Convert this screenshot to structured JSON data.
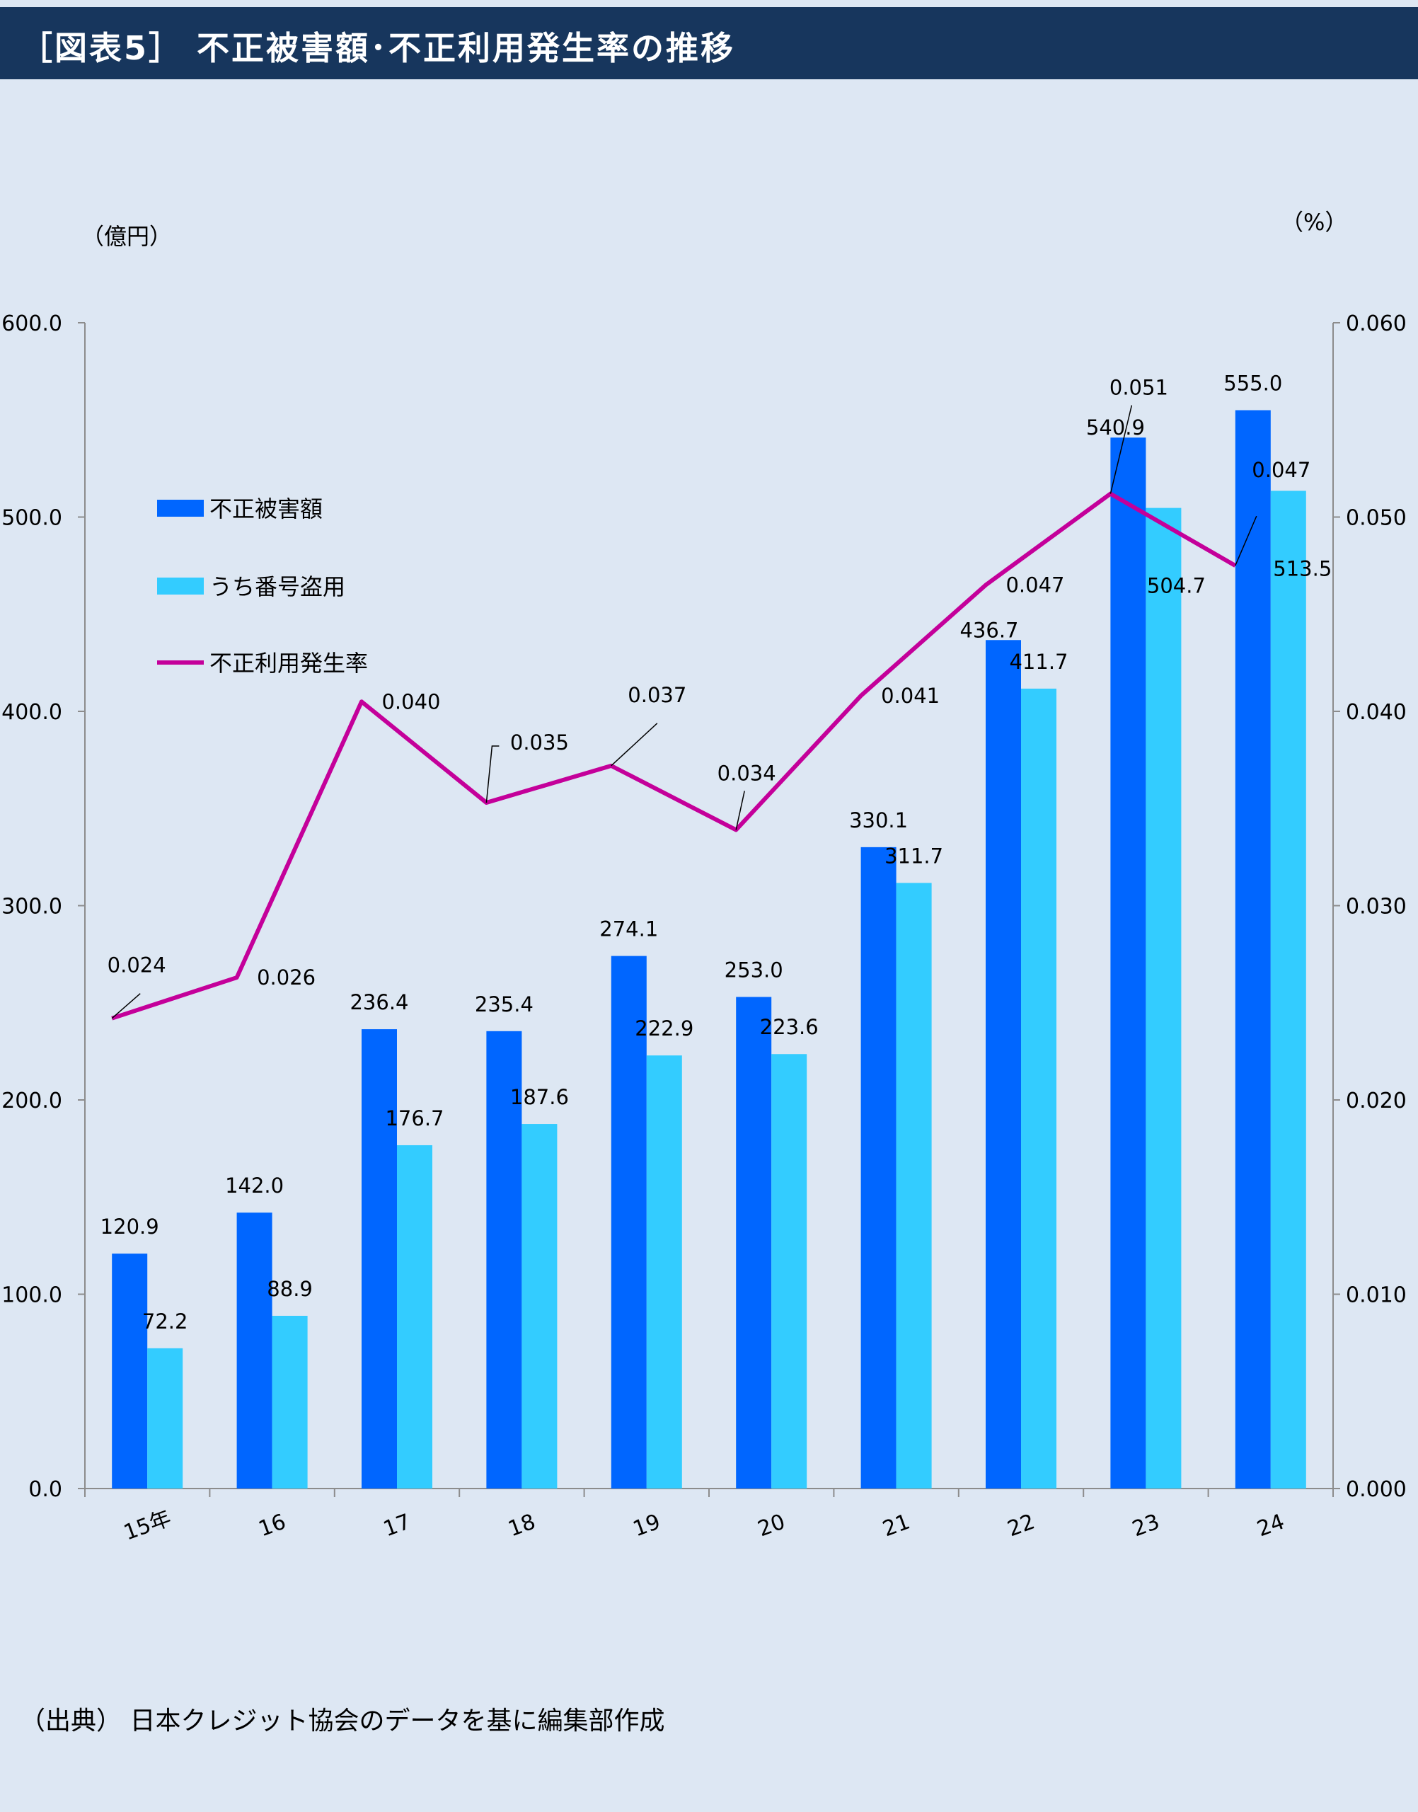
{
  "header": {
    "title": "［図表5］ 不正被害額･不正利用発生率の推移"
  },
  "source_note": "（出典） 日本クレジット協会のデータを基に編集部作成",
  "chart_data": {
    "type": "bar",
    "title": "［図表5］ 不正被害額･不正利用発生率の推移",
    "left_unit": "（億円）",
    "right_unit": "（%）",
    "categories": [
      "15年",
      "16",
      "17",
      "18",
      "19",
      "20",
      "21",
      "22",
      "23",
      "24"
    ],
    "ylim": [
      0,
      600
    ],
    "y2lim": [
      0,
      0.06
    ],
    "y_ticks": [
      "0.0",
      "100.0",
      "200.0",
      "300.0",
      "400.0",
      "500.0",
      "600.0"
    ],
    "y2_ticks": [
      "0.000",
      "0.010",
      "0.020",
      "0.030",
      "0.040",
      "0.050",
      "0.060"
    ],
    "grid": false,
    "legend_position": "upper-left",
    "series": [
      {
        "name": "不正被害額",
        "kind": "bar",
        "color": "#0066ff",
        "values": [
          120.9,
          142.0,
          236.4,
          235.4,
          274.1,
          253.0,
          330.1,
          436.7,
          540.9,
          555.0
        ],
        "labels": [
          "120.9",
          "142.0",
          "236.4",
          "235.4",
          "274.1",
          "253.0",
          "330.1",
          "436.7",
          "540.9",
          "555.0"
        ]
      },
      {
        "name": "うち番号盗用",
        "kind": "bar",
        "color": "#33ccff",
        "values": [
          72.2,
          88.9,
          176.7,
          187.6,
          222.9,
          223.6,
          311.7,
          411.7,
          504.7,
          513.5
        ],
        "labels": [
          "72.2",
          "88.9",
          "176.7",
          "187.6",
          "222.9",
          "223.6",
          "311.7",
          "411.7",
          "504.7",
          "513.5"
        ]
      },
      {
        "name": "不正利用発生率",
        "kind": "line",
        "axis": "right",
        "color": "#c4009a",
        "values": [
          0.0242,
          0.0263,
          0.0405,
          0.0353,
          0.0372,
          0.0339,
          0.0408,
          0.0465,
          0.0512,
          0.0475
        ],
        "labels": [
          "0.024",
          "0.026",
          "0.040",
          "0.035",
          "0.037",
          "0.034",
          "0.041",
          "0.047",
          "0.051",
          "0.047"
        ]
      }
    ]
  }
}
